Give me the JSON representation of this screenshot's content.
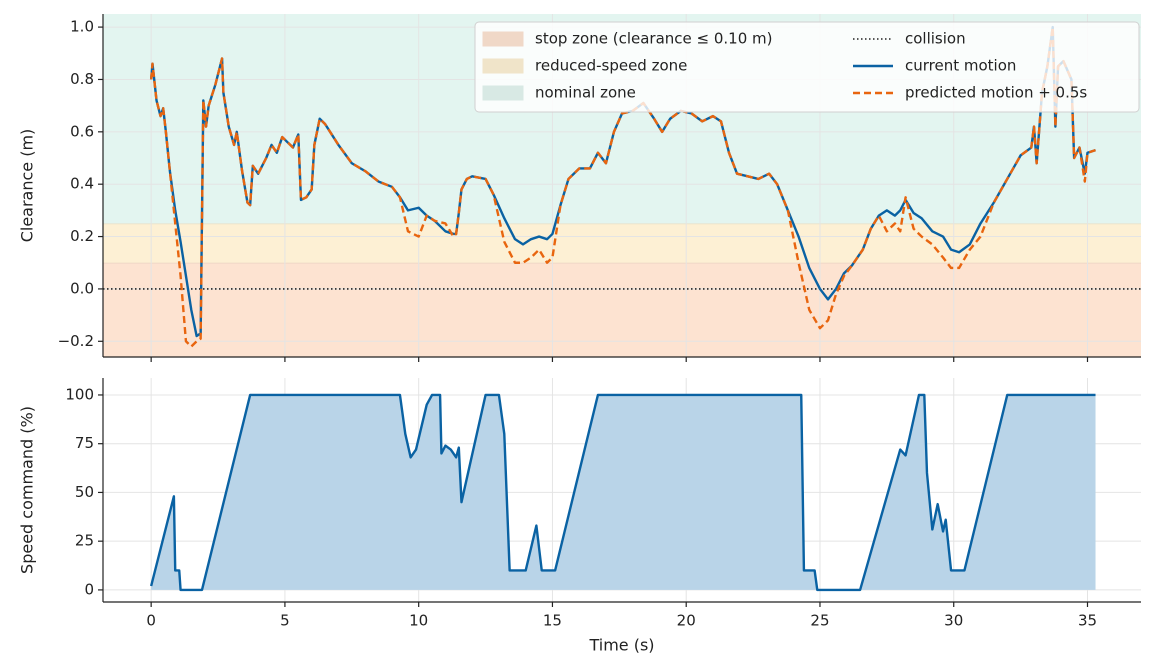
{
  "chart_data": [
    {
      "type": "line",
      "ylabel": "Clearance (m)",
      "xlim": [
        -1.8,
        37.0
      ],
      "xticks": [
        0,
        5,
        10,
        15,
        20,
        25,
        30,
        35
      ],
      "ylim": [
        -0.26,
        1.05
      ],
      "yticks": [
        {
          "value": -0.2,
          "label": "−0.2"
        },
        {
          "value": 0,
          "label": "0.0"
        },
        0.2,
        0.4,
        0.6,
        0.8,
        {
          "value": 1,
          "label": "1.0"
        }
      ],
      "grid": true,
      "legend": "upper right",
      "zones": [
        {
          "name": "stop zone (clearance ≤ 0.10 m)",
          "color": "#fde3d1",
          "ymin": -0.3,
          "ymax": 0.1
        },
        {
          "name": "reduced-speed zone",
          "color": "#fdf0d4",
          "ymin": 0.1,
          "ymax": 0.25
        },
        {
          "name": "nominal zone",
          "color": "#e3f5f0",
          "ymin": 0.25,
          "ymax": 1.1
        }
      ],
      "hline": {
        "name": "collision",
        "value": 0,
        "color": "#222222"
      },
      "x": [
        0,
        0.05,
        0.2,
        0.35,
        0.45,
        0.55,
        0.7,
        0.9,
        1.1,
        1.3,
        1.5,
        1.7,
        1.85,
        1.95,
        2.05,
        2.15,
        2.4,
        2.65,
        2.7,
        2.9,
        3.1,
        3.2,
        3.4,
        3.6,
        3.7,
        3.8,
        4.0,
        4.3,
        4.5,
        4.7,
        4.9,
        5.1,
        5.3,
        5.5,
        5.6,
        5.8,
        6.0,
        6.1,
        6.3,
        6.5,
        7.0,
        7.5,
        8.0,
        8.5,
        9.0,
        9.3,
        9.6,
        10.0,
        10.3,
        10.6,
        11.0,
        11.3,
        11.4,
        11.5,
        11.6,
        11.8,
        12.0,
        12.5,
        12.8,
        13.2,
        13.6,
        13.9,
        14.2,
        14.5,
        14.8,
        15.0,
        15.3,
        15.6,
        16.0,
        16.4,
        16.7,
        17.0,
        17.3,
        17.6,
        18.0,
        18.4,
        18.8,
        19.1,
        19.4,
        19.8,
        20.2,
        20.6,
        21.0,
        21.3,
        21.6,
        21.9,
        22.3,
        22.7,
        23.1,
        23.4,
        23.8,
        24.2,
        24.6,
        25.0,
        25.3,
        25.6,
        25.9,
        26.2,
        26.6,
        26.9,
        27.2,
        27.5,
        27.8,
        28.0,
        28.2,
        28.5,
        28.8,
        29.2,
        29.6,
        29.9,
        30.2,
        30.6,
        31.0,
        31.5,
        32.0,
        32.5,
        32.9,
        33.0,
        33.1,
        33.3,
        33.5,
        33.7,
        33.8,
        33.9,
        34.1,
        34.4,
        34.5,
        34.7,
        34.9,
        35.0,
        35.3
      ],
      "series": [
        {
          "name": "current motion",
          "color": "#0a62a3",
          "dash": "solid",
          "values": [
            0.8,
            0.86,
            0.72,
            0.66,
            0.69,
            0.6,
            0.45,
            0.3,
            0.18,
            0.05,
            -0.08,
            -0.18,
            -0.17,
            0.72,
            0.62,
            0.7,
            0.78,
            0.88,
            0.75,
            0.62,
            0.55,
            0.6,
            0.45,
            0.33,
            0.32,
            0.47,
            0.44,
            0.5,
            0.55,
            0.52,
            0.58,
            0.56,
            0.54,
            0.59,
            0.34,
            0.35,
            0.38,
            0.55,
            0.65,
            0.63,
            0.55,
            0.48,
            0.45,
            0.41,
            0.39,
            0.35,
            0.3,
            0.31,
            0.28,
            0.26,
            0.22,
            0.21,
            0.21,
            0.29,
            0.38,
            0.42,
            0.43,
            0.42,
            0.36,
            0.27,
            0.19,
            0.17,
            0.19,
            0.2,
            0.19,
            0.21,
            0.32,
            0.42,
            0.46,
            0.46,
            0.52,
            0.48,
            0.6,
            0.67,
            0.68,
            0.71,
            0.65,
            0.6,
            0.65,
            0.68,
            0.67,
            0.64,
            0.66,
            0.64,
            0.52,
            0.44,
            0.43,
            0.42,
            0.44,
            0.4,
            0.3,
            0.2,
            0.08,
            0.0,
            -0.04,
            0.0,
            0.06,
            0.09,
            0.15,
            0.23,
            0.28,
            0.3,
            0.28,
            0.3,
            0.34,
            0.29,
            0.27,
            0.22,
            0.2,
            0.15,
            0.14,
            0.17,
            0.25,
            0.33,
            0.42,
            0.51,
            0.54,
            0.62,
            0.48,
            0.75,
            0.85,
            1.0,
            0.62,
            0.85,
            0.87,
            0.8,
            0.5,
            0.54,
            0.44,
            0.52,
            0.53
          ]
        },
        {
          "name": "predicted motion + 0.5s",
          "color": "#e8650f",
          "dash": "dashed",
          "values": [
            0.8,
            0.86,
            0.72,
            0.66,
            0.69,
            0.6,
            0.45,
            0.25,
            0.05,
            -0.2,
            -0.22,
            -0.2,
            -0.19,
            0.72,
            0.62,
            0.7,
            0.78,
            0.88,
            0.75,
            0.62,
            0.55,
            0.6,
            0.45,
            0.33,
            0.32,
            0.47,
            0.44,
            0.5,
            0.55,
            0.52,
            0.58,
            0.56,
            0.54,
            0.59,
            0.34,
            0.35,
            0.38,
            0.55,
            0.65,
            0.63,
            0.55,
            0.48,
            0.45,
            0.41,
            0.39,
            0.35,
            0.22,
            0.2,
            0.28,
            0.26,
            0.25,
            0.2,
            0.21,
            0.29,
            0.38,
            0.42,
            0.43,
            0.42,
            0.36,
            0.18,
            0.1,
            0.1,
            0.12,
            0.15,
            0.1,
            0.12,
            0.32,
            0.42,
            0.46,
            0.46,
            0.52,
            0.48,
            0.6,
            0.67,
            0.68,
            0.71,
            0.65,
            0.6,
            0.65,
            0.68,
            0.67,
            0.64,
            0.66,
            0.64,
            0.52,
            0.44,
            0.43,
            0.42,
            0.44,
            0.4,
            0.3,
            0.1,
            -0.08,
            -0.15,
            -0.12,
            -0.02,
            0.05,
            0.09,
            0.15,
            0.23,
            0.28,
            0.22,
            0.25,
            0.22,
            0.35,
            0.23,
            0.2,
            0.17,
            0.12,
            0.08,
            0.08,
            0.15,
            0.2,
            0.33,
            0.42,
            0.51,
            0.54,
            0.62,
            0.48,
            0.75,
            0.85,
            1.0,
            0.62,
            0.85,
            0.87,
            0.8,
            0.5,
            0.54,
            0.41,
            0.52,
            0.53
          ]
        }
      ]
    },
    {
      "type": "area",
      "xlabel": "Time (s)",
      "ylabel": "Speed command (%)",
      "xlim": [
        -1.8,
        37.0
      ],
      "xticks": [
        0,
        5,
        10,
        15,
        20,
        25,
        30,
        35
      ],
      "ylim": [
        -6.2,
        108.7
      ],
      "yticks": [
        0,
        25,
        50,
        75,
        100
      ],
      "grid": true,
      "color": "#0a62a3",
      "fill": "#b9d4e8",
      "x": [
        0,
        0.85,
        0.9,
        1.05,
        1.1,
        1.9,
        3.7,
        9.3,
        9.5,
        9.7,
        9.9,
        10.3,
        10.5,
        10.8,
        10.85,
        11.0,
        11.2,
        11.4,
        11.5,
        11.6,
        12.5,
        13.0,
        13.2,
        13.4,
        14.0,
        14.4,
        14.6,
        15.1,
        16.7,
        24.3,
        24.4,
        24.8,
        24.9,
        26.5,
        28.0,
        28.2,
        28.7,
        28.9,
        29.0,
        29.2,
        29.4,
        29.6,
        29.7,
        29.9,
        30.4,
        32.0,
        35.3
      ],
      "values": [
        2,
        48,
        10,
        10,
        0,
        0,
        100,
        100,
        80,
        68,
        72,
        95,
        100,
        100,
        70,
        74,
        72,
        68,
        73,
        45,
        100,
        100,
        80,
        10,
        10,
        33,
        10,
        10,
        100,
        100,
        10,
        10,
        0,
        0,
        72,
        69,
        100,
        100,
        60,
        31,
        44,
        30,
        36,
        10,
        10,
        100,
        100
      ]
    }
  ]
}
